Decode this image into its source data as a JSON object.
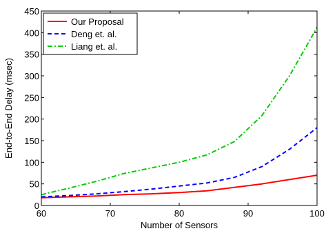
{
  "chart_data": {
    "type": "line",
    "title": "",
    "xlabel": "Number of Sensors",
    "ylabel": "End-to-End Delay (msec)",
    "xlim": [
      60,
      100
    ],
    "ylim": [
      0,
      450
    ],
    "xticks": [
      60,
      70,
      80,
      90,
      100
    ],
    "xtick_labels": [
      "60",
      "70",
      "80",
      "90",
      "100"
    ],
    "yticks": [
      0,
      50,
      100,
      150,
      200,
      250,
      300,
      350,
      400,
      450
    ],
    "ytick_labels": [
      "0",
      "50",
      "100",
      "150",
      "200",
      "250",
      "300",
      "350",
      "400",
      "450"
    ],
    "grid": false,
    "legend_position": "top-left",
    "series": [
      {
        "name": "Our Proposal",
        "color": "#ff0000",
        "line_style": "solid",
        "x": [
          60,
          64,
          68,
          72,
          76,
          80,
          84,
          88,
          92,
          96,
          100
        ],
        "y": [
          18,
          20,
          22,
          25,
          27,
          30,
          34,
          42,
          50,
          60,
          70
        ]
      },
      {
        "name": "Deng et. al.",
        "color": "#0000ff",
        "line_style": "dashed",
        "x": [
          60,
          64,
          68,
          72,
          76,
          80,
          84,
          88,
          92,
          96,
          100
        ],
        "y": [
          20,
          23,
          27,
          32,
          38,
          45,
          52,
          65,
          90,
          130,
          180
        ]
      },
      {
        "name": "Liang et. al.",
        "color": "#00cc00",
        "line_style": "dashdot",
        "x": [
          60,
          64,
          68,
          72,
          76,
          80,
          84,
          88,
          92,
          96,
          100
        ],
        "y": [
          25,
          40,
          56,
          74,
          87,
          100,
          117,
          148,
          208,
          300,
          412
        ]
      }
    ]
  }
}
